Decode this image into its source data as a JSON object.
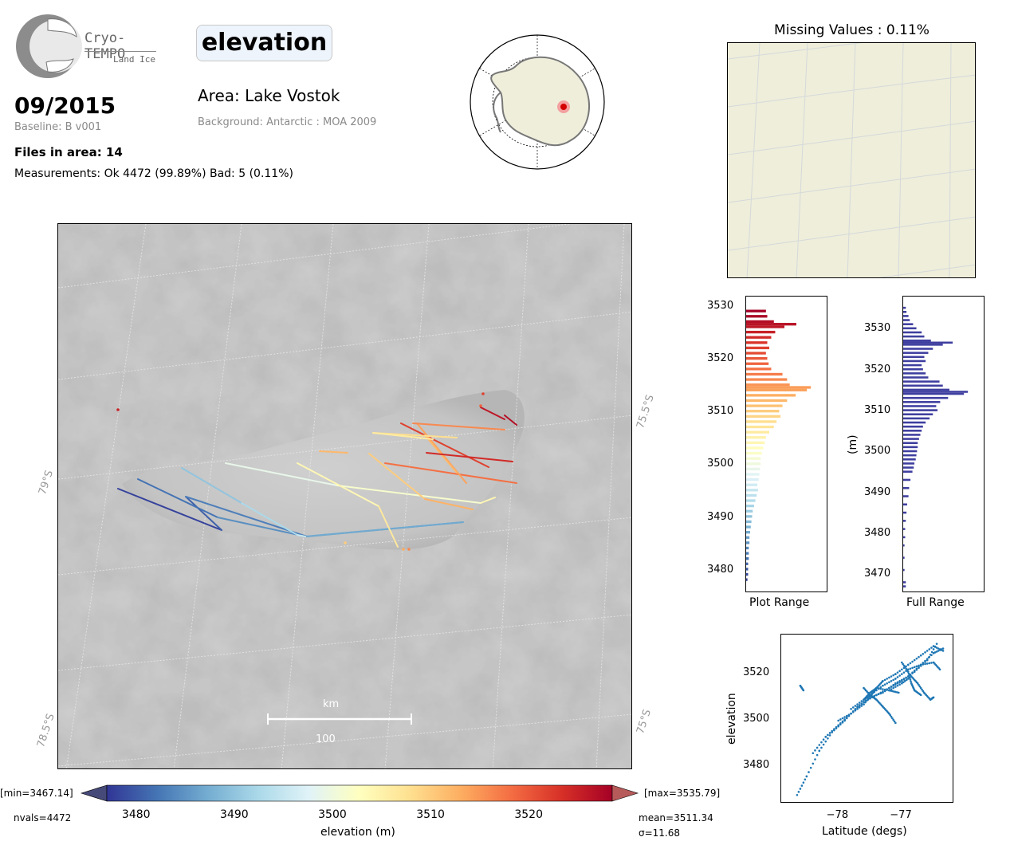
{
  "logo": {
    "name": "Cryo-TEMPO",
    "sub": "Land Ice"
  },
  "variable": "elevation",
  "date": "09/2015",
  "baseline": "Baseline: B v001",
  "files": "Files in area: 14",
  "measurements": "Measurements: Ok 4472 (99.89%) Bad: 5 (0.11%)",
  "area": "Area: Lake Vostok",
  "background": "Background: Antarctic : MOA 2009",
  "missing_title": "Missing Values : 0.11%",
  "map": {
    "lat_labels": [
      "79°S",
      "78.5°S"
    ],
    "lon_labels": [
      "75.5°S",
      "75°S"
    ],
    "scale_unit": "km",
    "scale_value": "100"
  },
  "colorbar": {
    "min_label": "[min=3467.14]",
    "max_label": "[max=3535.79]",
    "ticks": [
      "3480",
      "3490",
      "3500",
      "3510",
      "3520"
    ],
    "label": "elevation (m)",
    "nvals": "nvals=4472",
    "mean": "mean=3511.34",
    "sigma": "σ=11.68",
    "range": [
      3477,
      3528.5
    ],
    "colors": [
      "#313695",
      "#4575b4",
      "#74add1",
      "#abd9e9",
      "#e0f3f8",
      "#ffffbf",
      "#fee090",
      "#fdae61",
      "#f46d43",
      "#d73027",
      "#a50026"
    ]
  },
  "plot_range_hist": {
    "label": "Plot Range",
    "ticks": [
      "3480",
      "3490",
      "3500",
      "3510",
      "3520",
      "3530"
    ],
    "range": [
      3476,
      3532
    ]
  },
  "full_range_hist": {
    "label": "Full Range",
    "ylabel": "(m)",
    "ticks": [
      "3470",
      "3480",
      "3490",
      "3500",
      "3510",
      "3520",
      "3530"
    ],
    "range": [
      3466,
      3538
    ],
    "color": "#3f3fa0"
  },
  "scatter": {
    "xlabel": "Latitude (degs)",
    "ylabel": "elevation",
    "xticks": [
      "−78",
      "−77"
    ],
    "yticks": [
      "3480",
      "3500",
      "3520"
    ],
    "color": "#1f77b4"
  },
  "chart_data": [
    {
      "type": "bar",
      "name": "Plot Range histogram",
      "orientation": "horizontal",
      "bin_width": 0.5,
      "ylim": [
        3476,
        3532
      ],
      "bins": [
        [
          3478,
          0.02
        ],
        [
          3479,
          0.03
        ],
        [
          3480,
          0.03
        ],
        [
          3481,
          0.03
        ],
        [
          3482,
          0.04
        ],
        [
          3483,
          0.04
        ],
        [
          3484,
          0.04
        ],
        [
          3485,
          0.05
        ],
        [
          3486,
          0.05
        ],
        [
          3487,
          0.06
        ],
        [
          3488,
          0.07
        ],
        [
          3489,
          0.08
        ],
        [
          3490,
          0.09
        ],
        [
          3491,
          0.1
        ],
        [
          3492,
          0.12
        ],
        [
          3493,
          0.14
        ],
        [
          3494,
          0.16
        ],
        [
          3495,
          0.18
        ],
        [
          3496,
          0.17
        ],
        [
          3497,
          0.19
        ],
        [
          3498,
          0.2
        ],
        [
          3499,
          0.21
        ],
        [
          3500,
          0.22
        ],
        [
          3501,
          0.22
        ],
        [
          3502,
          0.24
        ],
        [
          3503,
          0.26
        ],
        [
          3504,
          0.28
        ],
        [
          3505,
          0.3
        ],
        [
          3506,
          0.35
        ],
        [
          3507,
          0.42
        ],
        [
          3508,
          0.46
        ],
        [
          3509,
          0.52
        ],
        [
          3510,
          0.5
        ],
        [
          3511,
          0.55
        ],
        [
          3512,
          0.62
        ],
        [
          3513,
          0.75
        ],
        [
          3514,
          0.92
        ],
        [
          3514.5,
          0.98
        ],
        [
          3515,
          0.66
        ],
        [
          3516,
          0.62
        ],
        [
          3517,
          0.55
        ],
        [
          3518,
          0.38
        ],
        [
          3519,
          0.34
        ],
        [
          3520,
          0.32
        ],
        [
          3521,
          0.3
        ],
        [
          3522,
          0.35
        ],
        [
          3523,
          0.32
        ],
        [
          3524,
          0.38
        ],
        [
          3525,
          0.44
        ],
        [
          3526,
          0.58
        ],
        [
          3526.5,
          0.76
        ],
        [
          3527,
          0.42
        ],
        [
          3528,
          0.32
        ],
        [
          3529,
          0.3
        ]
      ]
    },
    {
      "type": "bar",
      "name": "Full Range histogram",
      "orientation": "horizontal",
      "bin_width": 0.5,
      "ylim": [
        3466,
        3538
      ],
      "bins": [
        [
          3467,
          0.04
        ],
        [
          3468,
          0.04
        ],
        [
          3471,
          0.02
        ],
        [
          3474,
          0.02
        ],
        [
          3477,
          0.02
        ],
        [
          3479,
          0.03
        ],
        [
          3481,
          0.03
        ],
        [
          3483,
          0.04
        ],
        [
          3485,
          0.05
        ],
        [
          3487,
          0.06
        ],
        [
          3489,
          0.08
        ],
        [
          3491,
          0.09
        ],
        [
          3493,
          0.11
        ],
        [
          3495,
          0.14
        ],
        [
          3496,
          0.16
        ],
        [
          3497,
          0.17
        ],
        [
          3498,
          0.19
        ],
        [
          3499,
          0.2
        ],
        [
          3500,
          0.21
        ],
        [
          3501,
          0.22
        ],
        [
          3502,
          0.22
        ],
        [
          3503,
          0.24
        ],
        [
          3504,
          0.26
        ],
        [
          3505,
          0.28
        ],
        [
          3506,
          0.3
        ],
        [
          3507,
          0.34
        ],
        [
          3508,
          0.4
        ],
        [
          3509,
          0.45
        ],
        [
          3510,
          0.52
        ],
        [
          3511,
          0.5
        ],
        [
          3512,
          0.56
        ],
        [
          3513,
          0.68
        ],
        [
          3514,
          0.92
        ],
        [
          3514.5,
          0.98
        ],
        [
          3515,
          0.7
        ],
        [
          3516,
          0.6
        ],
        [
          3517,
          0.55
        ],
        [
          3518,
          0.38
        ],
        [
          3519,
          0.34
        ],
        [
          3520,
          0.3
        ],
        [
          3521,
          0.28
        ],
        [
          3522,
          0.34
        ],
        [
          3523,
          0.32
        ],
        [
          3524,
          0.38
        ],
        [
          3525,
          0.45
        ],
        [
          3526,
          0.6
        ],
        [
          3526.5,
          0.75
        ],
        [
          3527,
          0.42
        ],
        [
          3528,
          0.32
        ],
        [
          3529,
          0.28
        ],
        [
          3530,
          0.2
        ],
        [
          3531,
          0.15
        ],
        [
          3532,
          0.1
        ],
        [
          3533,
          0.08
        ],
        [
          3534,
          0.05
        ],
        [
          3535,
          0.04
        ]
      ]
    },
    {
      "type": "scatter",
      "name": "elevation vs latitude",
      "xlim": [
        -78.9,
        -76.2
      ],
      "ylim": [
        3465,
        3537
      ],
      "tracks": [
        [
          [
            -78.65,
            3468
          ],
          [
            -78.5,
            3476
          ],
          [
            -78.3,
            3487
          ],
          [
            -78.1,
            3495
          ],
          [
            -77.9,
            3500
          ],
          [
            -77.7,
            3506
          ],
          [
            -77.5,
            3510
          ],
          [
            -77.3,
            3512
          ],
          [
            -77.1,
            3516
          ],
          [
            -76.9,
            3519
          ],
          [
            -76.7,
            3524
          ],
          [
            -76.5,
            3529
          ],
          [
            -76.35,
            3531
          ]
        ],
        [
          [
            -78.4,
            3486
          ],
          [
            -78.2,
            3493
          ],
          [
            -78.0,
            3498
          ],
          [
            -77.8,
            3503
          ],
          [
            -77.6,
            3508
          ],
          [
            -77.4,
            3511
          ],
          [
            -77.2,
            3514
          ],
          [
            -77.0,
            3517
          ],
          [
            -76.8,
            3521
          ],
          [
            -76.6,
            3526
          ],
          [
            -76.45,
            3533
          ]
        ],
        [
          [
            -78.0,
            3500
          ],
          [
            -77.8,
            3503
          ],
          [
            -77.6,
            3507
          ],
          [
            -77.45,
            3512
          ],
          [
            -77.4,
            3514
          ],
          [
            -77.2,
            3513
          ],
          [
            -77.05,
            3512
          ]
        ],
        [
          [
            -77.6,
            3509
          ],
          [
            -77.5,
            3511
          ],
          [
            -77.3,
            3515
          ],
          [
            -77.1,
            3518
          ],
          [
            -76.9,
            3522
          ],
          [
            -76.7,
            3524
          ],
          [
            -76.5,
            3525
          ],
          [
            -76.4,
            3522
          ]
        ],
        [
          [
            -77.2,
            3513
          ],
          [
            -77.0,
            3516
          ],
          [
            -76.85,
            3519
          ],
          [
            -76.75,
            3516
          ],
          [
            -76.65,
            3512
          ],
          [
            -76.55,
            3509
          ],
          [
            -76.5,
            3510
          ]
        ],
        [
          [
            -77.8,
            3505
          ],
          [
            -77.6,
            3509
          ],
          [
            -77.5,
            3512
          ],
          [
            -77.4,
            3514
          ],
          [
            -77.3,
            3517
          ],
          [
            -77.1,
            3520
          ],
          [
            -76.9,
            3524
          ],
          [
            -76.7,
            3528
          ],
          [
            -76.5,
            3532
          ],
          [
            -76.35,
            3530
          ]
        ],
        [
          [
            -77.0,
            3525
          ],
          [
            -76.9,
            3521
          ],
          [
            -76.85,
            3516
          ],
          [
            -76.8,
            3513
          ],
          [
            -76.7,
            3511
          ]
        ],
        [
          [
            -78.6,
            3515
          ],
          [
            -78.55,
            3513
          ]
        ],
        [
          [
            -77.6,
            3514
          ],
          [
            -77.5,
            3511
          ],
          [
            -77.4,
            3509
          ],
          [
            -77.3,
            3506
          ],
          [
            -77.2,
            3503
          ],
          [
            -77.1,
            3499
          ]
        ]
      ]
    }
  ]
}
